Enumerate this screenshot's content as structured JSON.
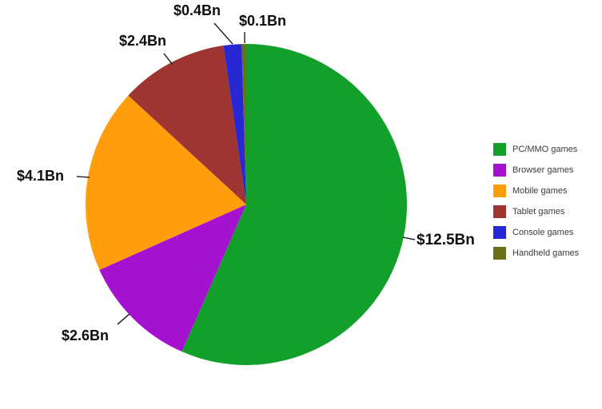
{
  "chart_data": {
    "type": "pie",
    "title": "",
    "unit": "USD billions",
    "total": 22.1,
    "start_angle_deg": 0,
    "direction": "clockwise",
    "legend_position": "right",
    "background": "#ffffff",
    "slices": [
      {
        "label": "PC/MMO games",
        "value": 12.5,
        "display": "$12.5Bn",
        "color": "#12a02b"
      },
      {
        "label": "Browser games",
        "value": 2.6,
        "display": "$2.6Bn",
        "color": "#a411cf"
      },
      {
        "label": "Mobile games",
        "value": 4.1,
        "display": "$4.1Bn",
        "color": "#ff9d0d"
      },
      {
        "label": "Tablet games",
        "value": 2.4,
        "display": "$2.4Bn",
        "color": "#9e3533"
      },
      {
        "label": "Console games",
        "value": 0.4,
        "display": "$0.4Bn",
        "color": "#2727d4"
      },
      {
        "label": "Handheld games",
        "value": 0.1,
        "display": "$0.1Bn",
        "color": "#6f6f1b"
      }
    ]
  }
}
